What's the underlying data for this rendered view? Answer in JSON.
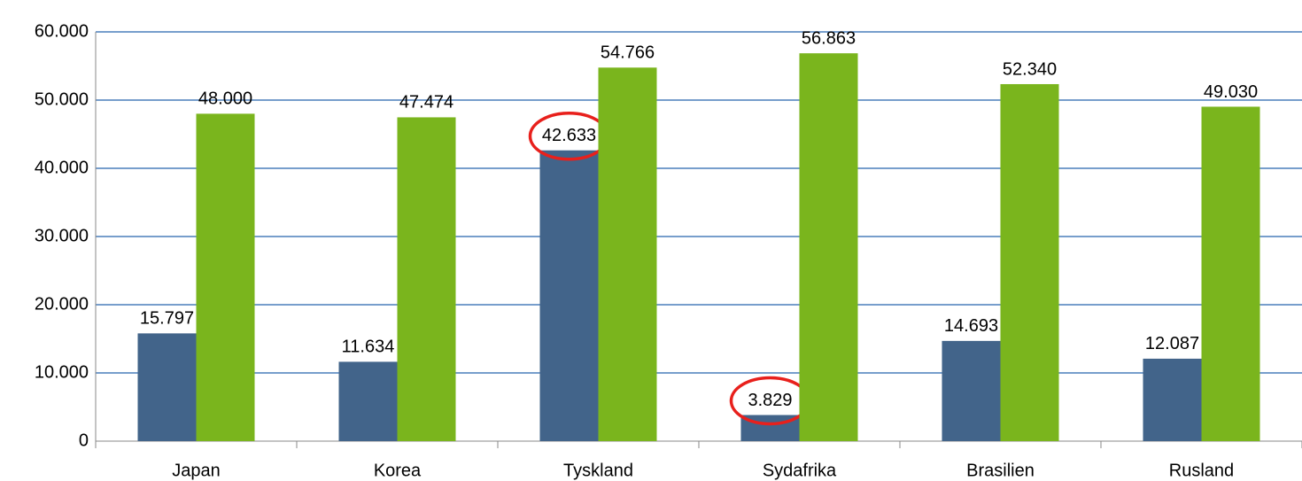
{
  "chart_data": {
    "type": "bar",
    "categories": [
      "Japan",
      "Korea",
      "Tyskland",
      "Sydafrika",
      "Brasilien",
      "Rusland"
    ],
    "series": [
      {
        "color": "#42648a",
        "values": [
          15797,
          11634,
          42633,
          3829,
          14693,
          12087
        ],
        "value_labels": [
          "15.797",
          "11.634",
          "42.633",
          "3.829",
          "14.693",
          "12.087"
        ]
      },
      {
        "color": "#7ab51d",
        "values": [
          48000,
          47474,
          54766,
          56863,
          52340,
          49030
        ],
        "value_labels": [
          "48.000",
          "47.474",
          "54.766",
          "56.863",
          "52.340",
          "49.030"
        ]
      }
    ],
    "ylim": [
      0,
      60000
    ],
    "yticks": [
      0,
      {
        "value": 10000,
        "label": "10.000"
      },
      {
        "value": 20000,
        "label": "20.000"
      },
      {
        "value": 30000,
        "label": "30.000"
      },
      {
        "value": 40000,
        "label": "40.000"
      },
      {
        "value": 50000,
        "label": "50.000"
      },
      {
        "value": 60000,
        "label": "60.000"
      }
    ],
    "grid": true,
    "grid_color": "#4a7ebb"
  }
}
